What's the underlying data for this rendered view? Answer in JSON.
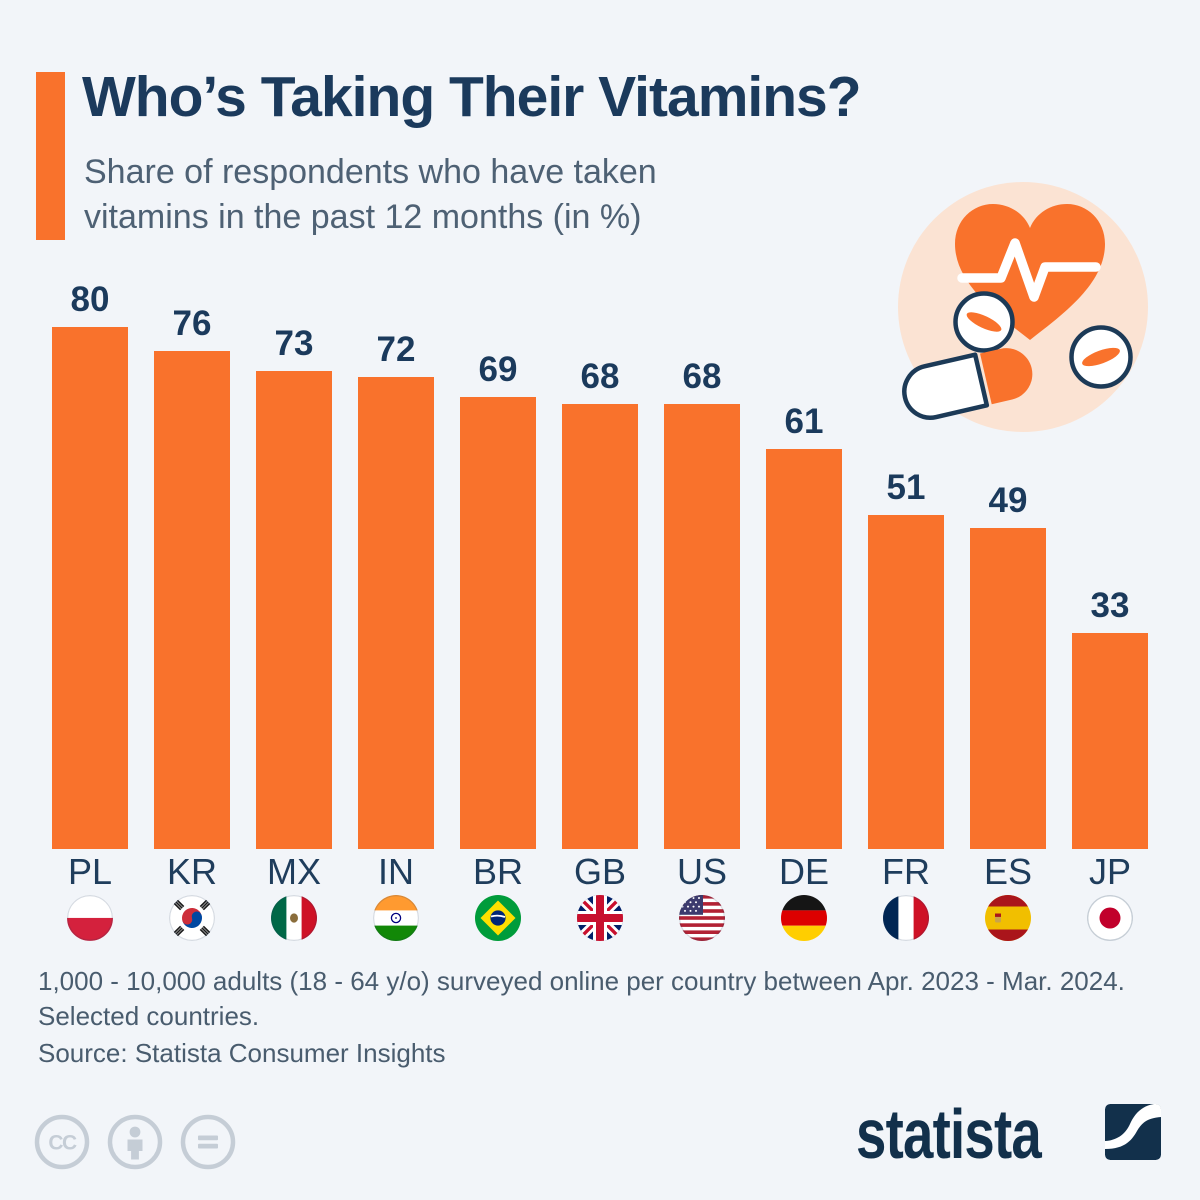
{
  "header": {
    "title": "Who’s Taking Their Vitamins?",
    "subtitle_line1": "Share of respondents who have taken",
    "subtitle_line2": "vitamins in the past 12 months (in %)"
  },
  "chart_data": {
    "type": "bar",
    "title": "Who’s Taking Their Vitamins?",
    "subtitle": "Share of respondents who have taken vitamins in the past 12 months (in %)",
    "categories": [
      "PL",
      "KR",
      "MX",
      "IN",
      "BR",
      "GB",
      "US",
      "DE",
      "FR",
      "ES",
      "JP"
    ],
    "values": [
      80,
      76,
      73,
      72,
      69,
      68,
      68,
      61,
      51,
      49,
      33
    ],
    "country_names": [
      "Poland",
      "South Korea",
      "Mexico",
      "India",
      "Brazil",
      "United Kingdom",
      "United States",
      "Germany",
      "France",
      "Spain",
      "Japan"
    ],
    "xlabel": "",
    "ylabel": "Share of respondents (%)",
    "ylim": [
      0,
      80
    ],
    "grid": false,
    "legend": false,
    "bar_color": "#F9722C",
    "value_label_color": "#1B3A5C",
    "value_labels_shown": true
  },
  "footer": {
    "note_line1": "1,000 - 10,000 adults (18 - 64 y/o) surveyed online per country between Apr. 2023 - Mar. 2024.",
    "note_line2": "Selected countries.",
    "source": "Source: Statista Consumer Insights",
    "brand": "statista"
  },
  "icons": {
    "hero": "heart-with-pulse-and-pills",
    "license": [
      "cc",
      "attribution-person",
      "equals"
    ],
    "brand_mark": "statista-swoosh"
  },
  "colors": {
    "background": "#F2F5F9",
    "accent_orange": "#F9722C",
    "title_navy": "#1B3A5C",
    "subtitle_slate": "#4E6174",
    "note_slate": "#495C6E",
    "peach_circle": "#FBE3D3",
    "pill_outline_navy": "#1C3A57",
    "license_gray": "#C5CDD6",
    "logo_navy": "#12304B"
  }
}
